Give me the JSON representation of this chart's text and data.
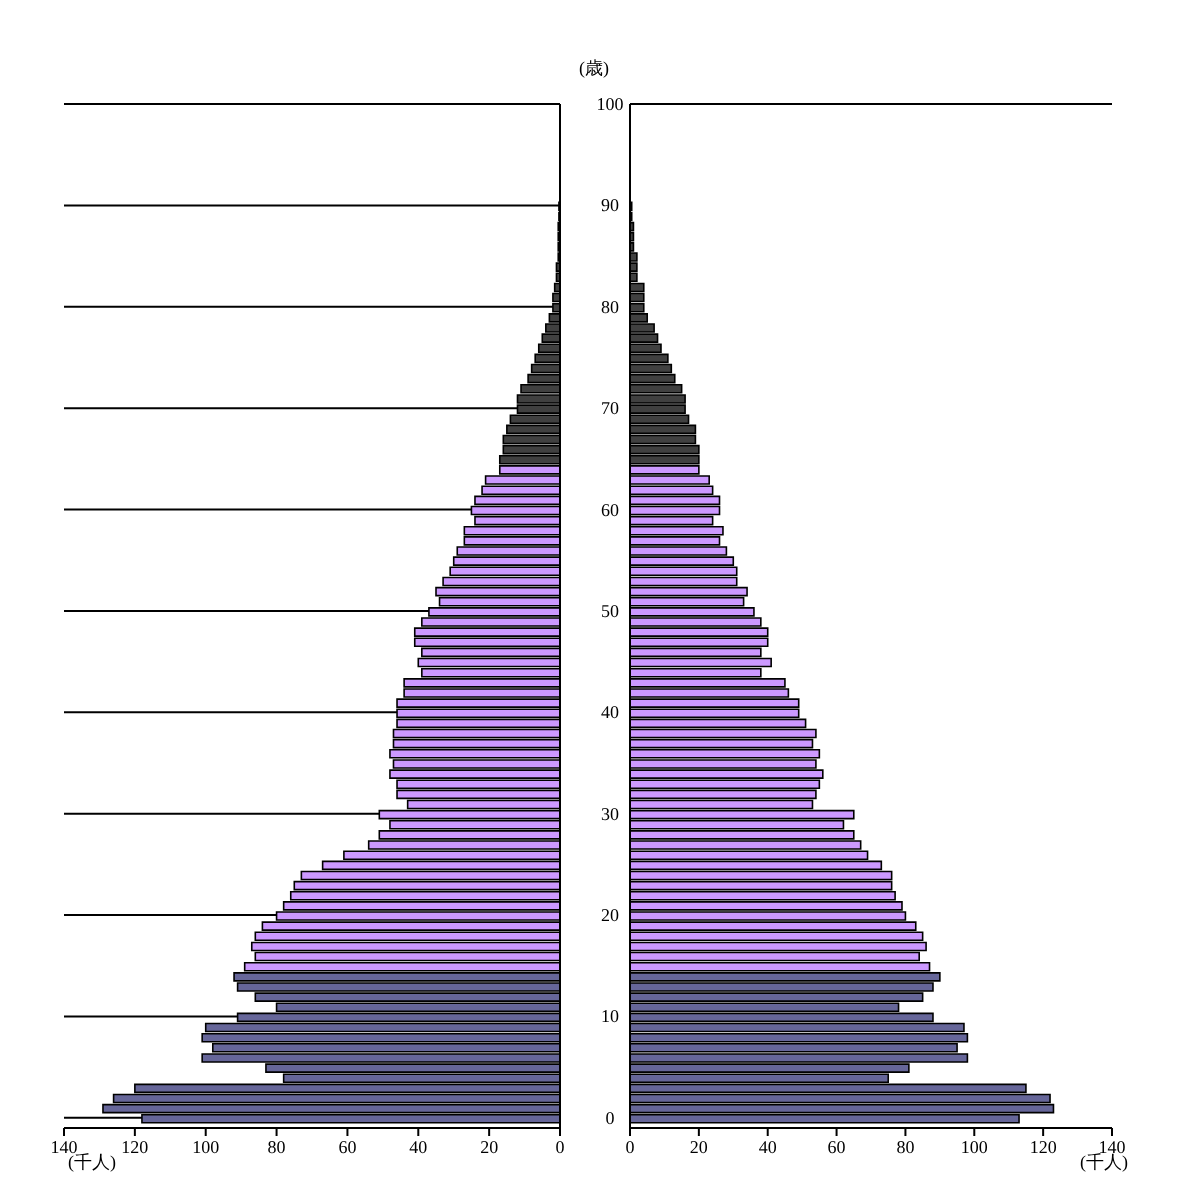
{
  "chart_data": [
    {
      "type": "bar",
      "orientation": "horizontal",
      "ylabel": "(歳)",
      "xlabel": "(千人)",
      "xlim": [
        140,
        0
      ],
      "xticks": [
        140,
        120,
        100,
        80,
        60,
        40,
        20,
        0
      ],
      "ylim": [
        -1,
        100
      ],
      "yticks": [
        0,
        10,
        20,
        30,
        40,
        50,
        60,
        70,
        80,
        90,
        100
      ],
      "grid": "y",
      "series": [
        {
          "color": "#666699",
          "x": [
            0,
            1,
            2,
            3,
            4,
            5,
            6,
            7,
            8,
            9,
            10,
            11,
            12,
            13,
            14
          ],
          "values": [
            118,
            129,
            126,
            120,
            78,
            83,
            101,
            98,
            101,
            100,
            91,
            80,
            86,
            91,
            92
          ]
        },
        {
          "color": "#cc99ff",
          "x": [
            15,
            16,
            17,
            18,
            19,
            20,
            21,
            22,
            23,
            24,
            25,
            26,
            27,
            28,
            29,
            30,
            31,
            32,
            33,
            34,
            35,
            36,
            37,
            38,
            39,
            40,
            41,
            42,
            43,
            44,
            45,
            46,
            47,
            48,
            49,
            50,
            51,
            52,
            53,
            54,
            55,
            56,
            57,
            58,
            59,
            60,
            61,
            62,
            63,
            64
          ],
          "values": [
            89,
            86,
            87,
            86,
            84,
            80,
            78,
            76,
            75,
            73,
            67,
            61,
            54,
            51,
            48,
            51,
            43,
            46,
            46,
            48,
            47,
            48,
            47,
            47,
            46,
            46,
            46,
            44,
            44,
            39,
            40,
            39,
            41,
            41,
            39,
            37,
            34,
            35,
            33,
            31,
            30,
            29,
            27,
            27,
            24,
            25,
            24,
            22,
            21,
            17
          ]
        },
        {
          "color": "#404040",
          "x": [
            65,
            66,
            67,
            68,
            69,
            70,
            71,
            72,
            73,
            74,
            75,
            76,
            77,
            78,
            79,
            80,
            81,
            82,
            83,
            84,
            85,
            86,
            87,
            88,
            89,
            90
          ],
          "values": [
            17,
            16,
            16,
            15,
            14,
            12,
            12,
            11,
            9,
            8,
            7,
            6,
            5,
            4,
            3,
            2,
            2,
            1.5,
            1,
            1,
            0.5,
            0.5,
            0.5,
            0.5,
            0.3,
            0.3
          ]
        }
      ]
    },
    {
      "type": "bar",
      "orientation": "horizontal",
      "xlabel": "(千人)",
      "xlim": [
        0,
        140
      ],
      "xticks": [
        0,
        20,
        40,
        60,
        80,
        100,
        120,
        140
      ],
      "ylim": [
        -1,
        100
      ],
      "yticks": [
        0,
        10,
        20,
        30,
        40,
        50,
        60,
        70,
        80,
        90,
        100
      ],
      "grid": "y",
      "tick_labels": "x",
      "series": [
        {
          "color": "#666699",
          "x": [
            0,
            1,
            2,
            3,
            4,
            5,
            6,
            7,
            8,
            9,
            10,
            11,
            12,
            13,
            14
          ],
          "values": [
            113,
            123,
            122,
            115,
            75,
            81,
            98,
            95,
            98,
            97,
            88,
            78,
            85,
            88,
            90
          ]
        },
        {
          "color": "#cc99ff",
          "x": [
            15,
            16,
            17,
            18,
            19,
            20,
            21,
            22,
            23,
            24,
            25,
            26,
            27,
            28,
            29,
            30,
            31,
            32,
            33,
            34,
            35,
            36,
            37,
            38,
            39,
            40,
            41,
            42,
            43,
            44,
            45,
            46,
            47,
            48,
            49,
            50,
            51,
            52,
            53,
            54,
            55,
            56,
            57,
            58,
            59,
            60,
            61,
            62,
            63,
            64
          ],
          "values": [
            87,
            84,
            86,
            85,
            83,
            80,
            79,
            77,
            76,
            76,
            73,
            69,
            67,
            65,
            62,
            65,
            53,
            54,
            55,
            56,
            54,
            55,
            53,
            54,
            51,
            49,
            49,
            46,
            45,
            38,
            41,
            38,
            40,
            40,
            38,
            36,
            33,
            34,
            31,
            31,
            30,
            28,
            26,
            27,
            24,
            26,
            26,
            24,
            23,
            20
          ]
        },
        {
          "color": "#404040",
          "x": [
            65,
            66,
            67,
            68,
            69,
            70,
            71,
            72,
            73,
            74,
            75,
            76,
            77,
            78,
            79,
            80,
            81,
            82,
            83,
            84,
            85,
            86,
            87,
            88,
            89,
            90
          ],
          "values": [
            20,
            20,
            19,
            19,
            17,
            16,
            16,
            15,
            13,
            12,
            11,
            9,
            8,
            7,
            5,
            4,
            4,
            4,
            2,
            2,
            2,
            1,
            1,
            1,
            0.5,
            0.5
          ]
        }
      ]
    }
  ]
}
